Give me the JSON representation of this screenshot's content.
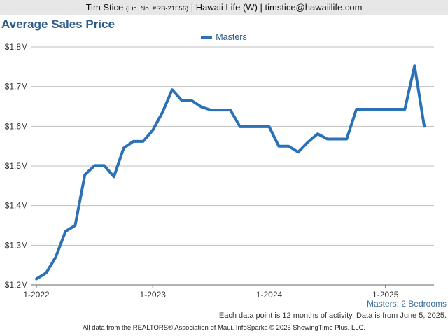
{
  "header": {
    "name": "Tim Stice",
    "license": "(Lic. No. #RB-21556)",
    "company_email": "| Hawaii Life (W) | timstice@hawaiilife.com"
  },
  "title": "Average Sales Price",
  "subtitle": "Masters: 2 Bedrooms",
  "footnote": "Each data point is 12 months of activity. Data is from June 5, 2025.",
  "footer": "All data from the REALTORS® Association of Maui. InfoSparks © 2025 ShowingTime Plus, LLC.",
  "colors": {
    "series": "#2a71b5",
    "title": "#2c5b8a",
    "grid": "#bfbfbf"
  },
  "chart_data": {
    "type": "line",
    "title": "Average Sales Price",
    "ylim": [
      1200000,
      1800000
    ],
    "xlim": [
      "2022-01",
      "2025-06"
    ],
    "y_ticks": [
      1200000,
      1300000,
      1400000,
      1500000,
      1600000,
      1700000,
      1800000
    ],
    "y_tick_labels": [
      "$1.2M",
      "$1.3M",
      "$1.4M",
      "$1.5M",
      "$1.6M",
      "$1.7M",
      "$1.8M"
    ],
    "x_ticks": [
      "2022-01",
      "2023-01",
      "2024-01",
      "2025-01"
    ],
    "x_tick_labels": [
      "1-2022",
      "1-2023",
      "1-2024",
      "1-2025"
    ],
    "grid": true,
    "legend_position": "top-center",
    "series": [
      {
        "name": "Masters",
        "x": [
          "2022-01",
          "2022-02",
          "2022-03",
          "2022-04",
          "2022-05",
          "2022-06",
          "2022-07",
          "2022-08",
          "2022-09",
          "2022-10",
          "2022-11",
          "2022-12",
          "2023-01",
          "2023-02",
          "2023-03",
          "2023-04",
          "2023-05",
          "2023-06",
          "2023-07",
          "2023-08",
          "2023-09",
          "2023-10",
          "2023-11",
          "2023-12",
          "2024-01",
          "2024-02",
          "2024-03",
          "2024-04",
          "2024-05",
          "2024-06",
          "2024-07",
          "2024-08",
          "2024-09",
          "2024-10",
          "2024-11",
          "2024-12",
          "2025-01",
          "2025-02",
          "2025-03",
          "2025-04",
          "2025-05"
        ],
        "y": [
          1215000,
          1230000,
          1270000,
          1335000,
          1350000,
          1478000,
          1501000,
          1501000,
          1473000,
          1545000,
          1562000,
          1562000,
          1590000,
          1635000,
          1692000,
          1665000,
          1665000,
          1649000,
          1641000,
          1641000,
          1641000,
          1599000,
          1599000,
          1599000,
          1599000,
          1550000,
          1550000,
          1535000,
          1560000,
          1581000,
          1568000,
          1568000,
          1568000,
          1643000,
          1643000,
          1643000,
          1643000,
          1643000,
          1643000,
          1752000,
          1600000
        ]
      }
    ]
  }
}
